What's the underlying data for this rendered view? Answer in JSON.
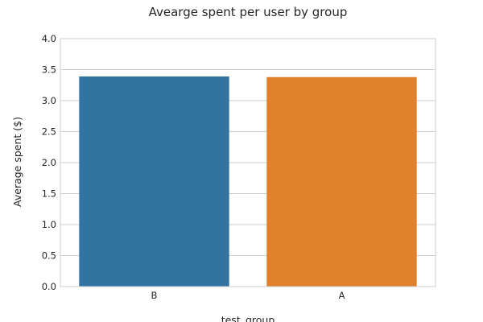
{
  "chart_data": {
    "type": "bar",
    "title": "Avearge spent per user by group",
    "xlabel": "test_group",
    "ylabel": "Average spent ($)",
    "categories": [
      "B",
      "A"
    ],
    "values": [
      3.39,
      3.38
    ],
    "ylim": [
      0,
      4.0
    ],
    "yticks": [
      "0.0",
      "0.5",
      "1.0",
      "1.5",
      "2.0",
      "2.5",
      "3.0",
      "3.5",
      "4.0"
    ],
    "grid": true,
    "colors": [
      "#3274a1",
      "#e1812c"
    ],
    "grid_color": "#cccccc",
    "frame_color": "#cccccc"
  }
}
